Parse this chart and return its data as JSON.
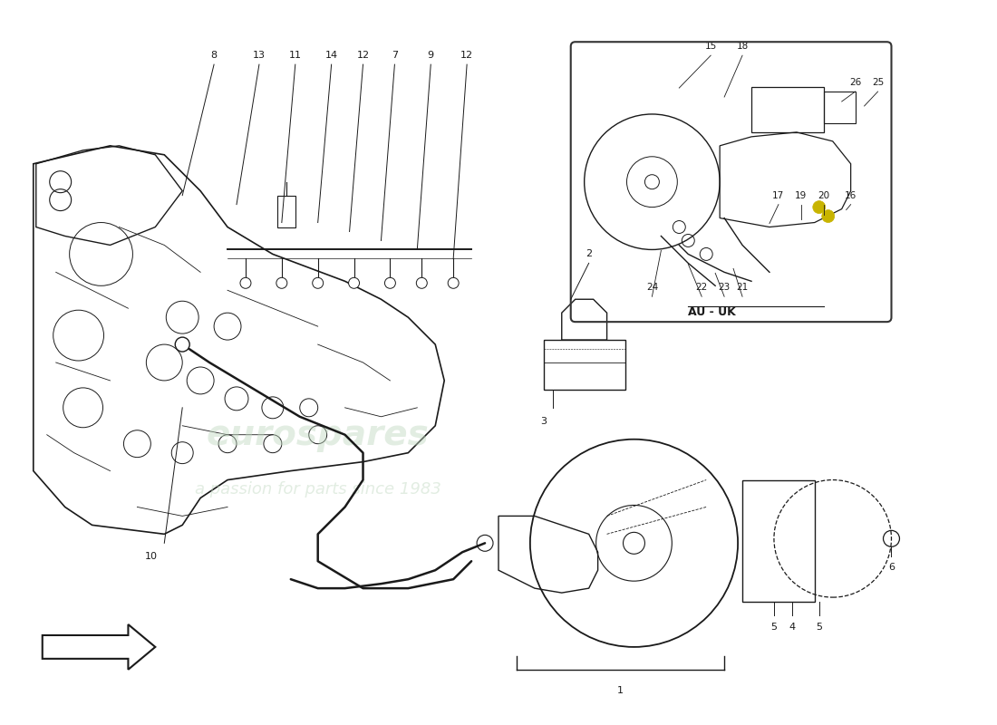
{
  "bg_color": "#ffffff",
  "line_color": "#1a1a1a",
  "text_color": "#1a1a1a",
  "inset_box_color": "#333333",
  "yellow_dot_color": "#c8b400",
  "watermark1": "eurospares",
  "watermark2": "a passion for parts since 1983",
  "au_uk_label": "AU - UK",
  "top_labels": [
    [
      "8",
      2.35,
      7.35,
      2.0,
      5.8
    ],
    [
      "13",
      2.85,
      7.35,
      2.6,
      5.7
    ],
    [
      "11",
      3.25,
      7.35,
      3.1,
      5.5
    ],
    [
      "14",
      3.65,
      7.35,
      3.5,
      5.5
    ],
    [
      "12",
      4.0,
      7.35,
      3.85,
      5.4
    ],
    [
      "7",
      4.35,
      7.35,
      4.2,
      5.3
    ],
    [
      "9",
      4.75,
      7.35,
      4.6,
      5.2
    ],
    [
      "12",
      5.15,
      7.35,
      5.0,
      5.1
    ]
  ],
  "inset_labels": [
    [
      "15",
      7.85,
      7.45,
      7.5,
      7.0
    ],
    [
      "18",
      8.2,
      7.45,
      8.0,
      6.9
    ],
    [
      "17",
      8.6,
      5.8,
      8.5,
      5.5
    ],
    [
      "19",
      8.85,
      5.8,
      8.85,
      5.55
    ],
    [
      "20",
      9.1,
      5.8,
      9.1,
      5.6
    ],
    [
      "16",
      9.4,
      5.8,
      9.35,
      5.65
    ],
    [
      "22",
      7.75,
      4.78,
      7.6,
      5.05
    ],
    [
      "23",
      8.0,
      4.78,
      7.9,
      4.95
    ],
    [
      "21",
      8.2,
      4.78,
      8.1,
      5.0
    ],
    [
      "24",
      7.2,
      4.78,
      7.3,
      5.2
    ],
    [
      "25",
      9.7,
      7.05,
      9.55,
      6.8
    ],
    [
      "26",
      9.45,
      7.05,
      9.3,
      6.85
    ]
  ]
}
